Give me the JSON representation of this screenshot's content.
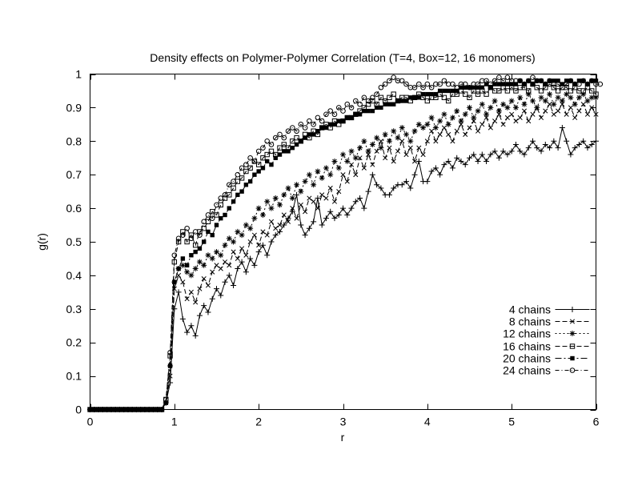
{
  "title": "Density effects on Polymer-Polymer Correlation (T=4, Box=12, 16 monomers)",
  "colors": {
    "foreground": "#000000",
    "background": "#ffffff"
  },
  "chart_data": {
    "type": "line",
    "title": "Density effects on Polymer-Polymer Correlation (T=4, Box=12, 16 monomers)",
    "xlabel": "r",
    "ylabel": "g(r)",
    "xlim": [
      0,
      6
    ],
    "ylim": [
      0,
      1
    ],
    "xticks": [
      0,
      1,
      2,
      3,
      4,
      5,
      6
    ],
    "yticks": [
      0,
      0.1,
      0.2,
      0.3,
      0.4,
      0.5,
      0.6,
      0.7,
      0.8,
      0.9,
      1
    ],
    "xtick_labels": [
      "0",
      "1",
      "2",
      "3",
      "4",
      "5",
      "6"
    ],
    "ytick_labels": [
      "0",
      "0.1",
      "0.2",
      "0.3",
      "0.4",
      "0.5",
      "0.6",
      "0.7",
      "0.8",
      "0.9",
      "1"
    ],
    "grid": false,
    "legend_position": "right-center-inside",
    "x_start": 0,
    "x_step": 0.05,
    "series": [
      {
        "name": "4 chains",
        "marker": "plus",
        "line": "solid",
        "values": [
          0,
          0,
          0,
          0,
          0,
          0,
          0,
          0,
          0,
          0,
          0,
          0,
          0,
          0,
          0,
          0,
          0,
          0,
          0.02,
          0.08,
          0.3,
          0.35,
          0.27,
          0.23,
          0.25,
          0.22,
          0.28,
          0.31,
          0.29,
          0.33,
          0.36,
          0.34,
          0.38,
          0.4,
          0.37,
          0.42,
          0.44,
          0.41,
          0.45,
          0.43,
          0.47,
          0.49,
          0.46,
          0.5,
          0.52,
          0.53,
          0.55,
          0.57,
          0.59,
          0.64,
          0.55,
          0.52,
          0.54,
          0.56,
          0.63,
          0.55,
          0.57,
          0.59,
          0.57,
          0.58,
          0.6,
          0.58,
          0.6,
          0.62,
          0.63,
          0.6,
          0.65,
          0.7,
          0.67,
          0.66,
          0.64,
          0.64,
          0.66,
          0.67,
          0.67,
          0.68,
          0.66,
          0.7,
          0.74,
          0.68,
          0.68,
          0.71,
          0.72,
          0.7,
          0.73,
          0.74,
          0.72,
          0.75,
          0.74,
          0.73,
          0.75,
          0.76,
          0.74,
          0.76,
          0.74,
          0.76,
          0.77,
          0.75,
          0.77,
          0.76,
          0.77,
          0.79,
          0.77,
          0.76,
          0.78,
          0.8,
          0.78,
          0.77,
          0.79,
          0.78,
          0.8,
          0.78,
          0.84,
          0.8,
          0.76,
          0.78,
          0.79,
          0.8,
          0.78,
          0.79,
          0.8
        ]
      },
      {
        "name": "8 chains",
        "marker": "cross",
        "line": "dash",
        "values": [
          0,
          0,
          0,
          0,
          0,
          0,
          0,
          0,
          0,
          0,
          0,
          0,
          0,
          0,
          0,
          0,
          0,
          0,
          0.02,
          0.1,
          0.36,
          0.4,
          0.38,
          0.33,
          0.35,
          0.32,
          0.36,
          0.39,
          0.37,
          0.41,
          0.43,
          0.42,
          0.44,
          0.43,
          0.47,
          0.45,
          0.48,
          0.46,
          0.5,
          0.52,
          0.49,
          0.53,
          0.52,
          0.56,
          0.54,
          0.55,
          0.58,
          0.56,
          0.6,
          0.57,
          0.61,
          0.59,
          0.63,
          0.62,
          0.6,
          0.64,
          0.63,
          0.66,
          0.62,
          0.65,
          0.7,
          0.68,
          0.73,
          0.7,
          0.75,
          0.72,
          0.76,
          0.73,
          0.77,
          0.8,
          0.75,
          0.78,
          0.74,
          0.77,
          0.8,
          0.76,
          0.78,
          0.74,
          0.78,
          0.76,
          0.8,
          0.83,
          0.8,
          0.82,
          0.84,
          0.82,
          0.8,
          0.83,
          0.85,
          0.82,
          0.84,
          0.86,
          0.83,
          0.85,
          0.87,
          0.84,
          0.86,
          0.88,
          0.85,
          0.87,
          0.88,
          0.86,
          0.87,
          0.89,
          0.86,
          0.88,
          0.9,
          0.87,
          0.89,
          0.91,
          0.88,
          0.89,
          0.91,
          0.88,
          0.9,
          0.87,
          0.89,
          0.91,
          0.88,
          0.9,
          0.88
        ]
      },
      {
        "name": "12 chains",
        "marker": "asterisk",
        "line": "dot",
        "values": [
          0,
          0,
          0,
          0,
          0,
          0,
          0,
          0,
          0,
          0,
          0,
          0,
          0,
          0,
          0,
          0,
          0,
          0,
          0.02,
          0.13,
          0.38,
          0.42,
          0.43,
          0.41,
          0.4,
          0.42,
          0.44,
          0.43,
          0.46,
          0.45,
          0.47,
          0.46,
          0.49,
          0.51,
          0.5,
          0.53,
          0.52,
          0.55,
          0.54,
          0.57,
          0.6,
          0.58,
          0.62,
          0.6,
          0.63,
          0.61,
          0.64,
          0.66,
          0.63,
          0.67,
          0.65,
          0.68,
          0.7,
          0.67,
          0.71,
          0.69,
          0.72,
          0.7,
          0.74,
          0.72,
          0.76,
          0.74,
          0.77,
          0.75,
          0.78,
          0.8,
          0.77,
          0.79,
          0.81,
          0.78,
          0.82,
          0.8,
          0.83,
          0.81,
          0.84,
          0.82,
          0.8,
          0.83,
          0.85,
          0.84,
          0.85,
          0.87,
          0.84,
          0.86,
          0.88,
          0.85,
          0.87,
          0.89,
          0.86,
          0.88,
          0.9,
          0.87,
          0.89,
          0.91,
          0.88,
          0.9,
          0.92,
          0.89,
          0.91,
          0.9,
          0.92,
          0.9,
          0.93,
          0.91,
          0.94,
          0.92,
          0.9,
          0.93,
          0.92,
          0.94,
          0.91,
          0.93,
          0.92,
          0.94,
          0.93,
          0.91,
          0.93,
          0.94,
          0.92,
          0.93,
          0.93
        ]
      },
      {
        "name": "16 chains",
        "marker": "open-square",
        "line": "dash",
        "values": [
          0,
          0,
          0,
          0,
          0,
          0,
          0,
          0,
          0,
          0,
          0,
          0,
          0,
          0,
          0,
          0,
          0,
          0,
          0.03,
          0.16,
          0.44,
          0.5,
          0.53,
          0.5,
          0.52,
          0.49,
          0.53,
          0.54,
          0.56,
          0.59,
          0.58,
          0.61,
          0.63,
          0.64,
          0.66,
          0.68,
          0.69,
          0.71,
          0.72,
          0.74,
          0.73,
          0.75,
          0.76,
          0.77,
          0.76,
          0.78,
          0.79,
          0.78,
          0.8,
          0.81,
          0.8,
          0.82,
          0.81,
          0.83,
          0.82,
          0.84,
          0.85,
          0.84,
          0.86,
          0.85,
          0.86,
          0.87,
          0.87,
          0.88,
          0.89,
          0.9,
          0.91,
          0.92,
          0.91,
          0.93,
          0.92,
          0.93,
          0.94,
          0.92,
          0.93,
          0.93,
          0.92,
          0.93,
          0.94,
          0.93,
          0.92,
          0.93,
          0.93,
          0.94,
          0.93,
          0.92,
          0.94,
          0.94,
          0.95,
          0.94,
          0.93,
          0.95,
          0.94,
          0.95,
          0.94,
          0.96,
          0.95,
          0.95,
          0.96,
          0.95,
          0.96,
          0.95,
          0.96,
          0.96,
          0.95,
          0.97,
          0.96,
          0.95,
          0.96,
          0.97,
          0.96,
          0.95,
          0.96,
          0.96,
          0.95,
          0.96,
          0.95,
          0.95,
          0.96,
          0.95,
          0.94
        ]
      },
      {
        "name": "20 chains",
        "marker": "filled-square",
        "line": "dash-dot",
        "values": [
          0,
          0,
          0,
          0,
          0,
          0,
          0,
          0,
          0,
          0,
          0,
          0,
          0,
          0,
          0,
          0,
          0,
          0,
          0.02,
          0.13,
          0.38,
          0.42,
          0.45,
          0.43,
          0.46,
          0.47,
          0.48,
          0.5,
          0.53,
          0.52,
          0.55,
          0.57,
          0.58,
          0.6,
          0.62,
          0.64,
          0.65,
          0.67,
          0.68,
          0.7,
          0.71,
          0.72,
          0.74,
          0.73,
          0.75,
          0.76,
          0.77,
          0.77,
          0.78,
          0.79,
          0.8,
          0.81,
          0.82,
          0.82,
          0.83,
          0.84,
          0.84,
          0.85,
          0.85,
          0.86,
          0.86,
          0.87,
          0.87,
          0.88,
          0.88,
          0.89,
          0.89,
          0.89,
          0.9,
          0.9,
          0.91,
          0.91,
          0.91,
          0.92,
          0.92,
          0.92,
          0.93,
          0.93,
          0.93,
          0.94,
          0.94,
          0.94,
          0.94,
          0.95,
          0.95,
          0.95,
          0.95,
          0.95,
          0.96,
          0.96,
          0.96,
          0.96,
          0.96,
          0.96,
          0.97,
          0.96,
          0.97,
          0.97,
          0.97,
          0.97,
          0.97,
          0.97,
          0.98,
          0.97,
          0.98,
          0.97,
          0.98,
          0.98,
          0.97,
          0.98,
          0.98,
          0.98,
          0.97,
          0.98,
          0.98,
          0.97,
          0.98,
          0.98,
          0.97,
          0.98,
          0.98
        ]
      },
      {
        "name": "24 chains",
        "marker": "open-circle",
        "line": "dash-dot-dot",
        "values": [
          0,
          0,
          0,
          0,
          0,
          0,
          0,
          0,
          0,
          0,
          0,
          0,
          0,
          0,
          0,
          0,
          0,
          0,
          0.03,
          0.17,
          0.46,
          0.51,
          0.52,
          0.54,
          0.51,
          0.53,
          0.52,
          0.56,
          0.58,
          0.57,
          0.61,
          0.63,
          0.64,
          0.67,
          0.68,
          0.7,
          0.72,
          0.73,
          0.75,
          0.74,
          0.77,
          0.78,
          0.8,
          0.79,
          0.81,
          0.82,
          0.81,
          0.83,
          0.84,
          0.83,
          0.85,
          0.84,
          0.86,
          0.85,
          0.87,
          0.86,
          0.88,
          0.89,
          0.88,
          0.9,
          0.89,
          0.91,
          0.9,
          0.92,
          0.91,
          0.93,
          0.92,
          0.93,
          0.94,
          0.96,
          0.97,
          0.98,
          0.99,
          0.98,
          0.98,
          0.97,
          0.96,
          0.96,
          0.97,
          0.96,
          0.97,
          0.96,
          0.97,
          0.97,
          0.98,
          0.97,
          0.97,
          0.96,
          0.97,
          0.97,
          0.96,
          0.97,
          0.97,
          0.98,
          0.98,
          0.97,
          0.98,
          0.99,
          0.98,
          0.99,
          0.98,
          0.98,
          0.98,
          0.97,
          0.98,
          0.99,
          0.98,
          0.98,
          0.97,
          0.98,
          0.97,
          0.97,
          0.96,
          0.97,
          0.98,
          0.97,
          0.97,
          0.98,
          0.97,
          0.98,
          0.97,
          0.97
        ]
      }
    ]
  }
}
